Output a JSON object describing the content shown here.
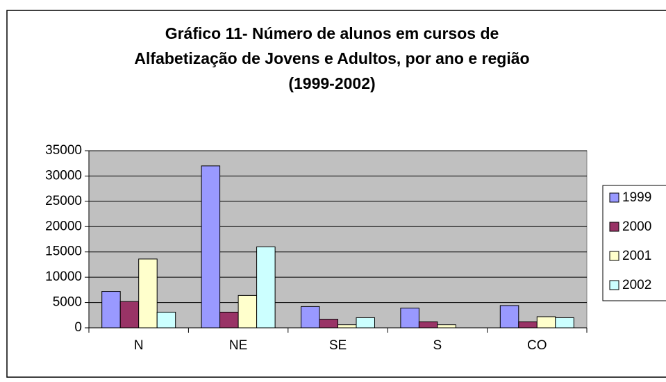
{
  "chart_data": {
    "type": "bar",
    "title": [
      "Gráfico 11- Número de alunos em cursos de",
      "Alfabetização de Jovens e Adultos, por ano e região",
      "(1999-2002)"
    ],
    "categories": [
      "N",
      "NE",
      "SE",
      "S",
      "CO"
    ],
    "series": [
      {
        "name": "1999",
        "color": "#9999ff",
        "values": [
          7200,
          32000,
          4200,
          3900,
          4400
        ]
      },
      {
        "name": "2000",
        "color": "#993366",
        "values": [
          5200,
          3100,
          1700,
          1200,
          1200
        ]
      },
      {
        "name": "2001",
        "color": "#ffffcc",
        "values": [
          13600,
          6400,
          600,
          600,
          2200
        ]
      },
      {
        "name": "2002",
        "color": "#ccffff",
        "values": [
          3100,
          16000,
          2000,
          0,
          2000
        ]
      }
    ],
    "ylim": [
      0,
      35000
    ],
    "yticks": [
      0,
      5000,
      10000,
      15000,
      20000,
      25000,
      30000,
      35000
    ],
    "grid": true,
    "legend": "right"
  }
}
